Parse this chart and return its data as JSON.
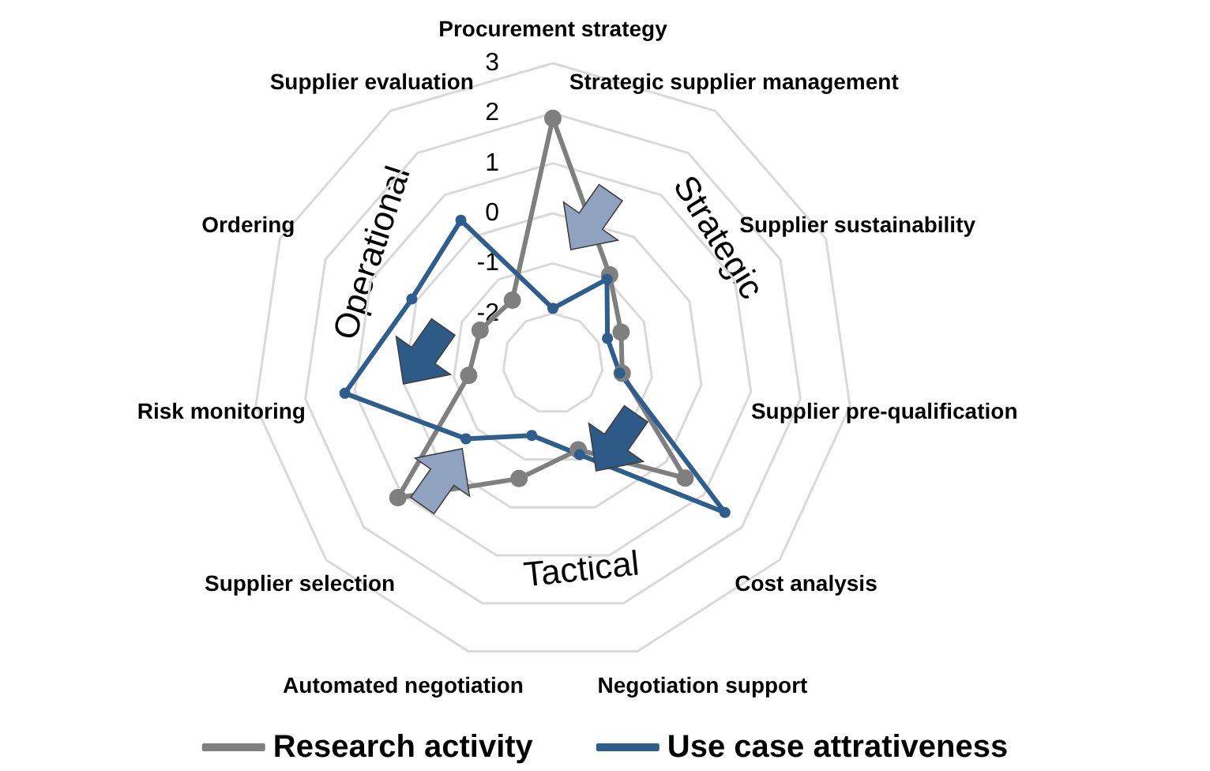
{
  "chart_data": {
    "type": "radar",
    "categories": [
      "Procurement strategy",
      "Strategic supplier management",
      "Supplier sustainability",
      "Supplier pre-qualification",
      "Cost analysis",
      "Negotiation support",
      "Automated negotiation",
      "Supplier selection",
      "Risk monitoring",
      "Ordering",
      "Supplier evaluation"
    ],
    "series": [
      {
        "name": "Research activity",
        "color": "#7f7f7f",
        "values": [
          1.9,
          -0.9,
          -1.5,
          -1.6,
          0.5,
          -1.2,
          -0.6,
          1.1,
          -1.3,
          -1.4,
          -1.5
        ]
      },
      {
        "name": "Use case attrativeness",
        "color": "#2e5e8e",
        "values": [
          -1.9,
          -1.0,
          -1.8,
          -1.65,
          1.55,
          -1.1,
          -1.5,
          -0.7,
          1.2,
          0.1,
          0.4
        ]
      }
    ],
    "ylim": [
      -3,
      3
    ],
    "yticks": [
      -2,
      -1,
      0,
      1,
      2,
      3
    ],
    "grid": true,
    "legend": "bottom",
    "marker": "circle",
    "annotations": [
      "Strategic",
      "Tactical",
      "Operational"
    ]
  }
}
